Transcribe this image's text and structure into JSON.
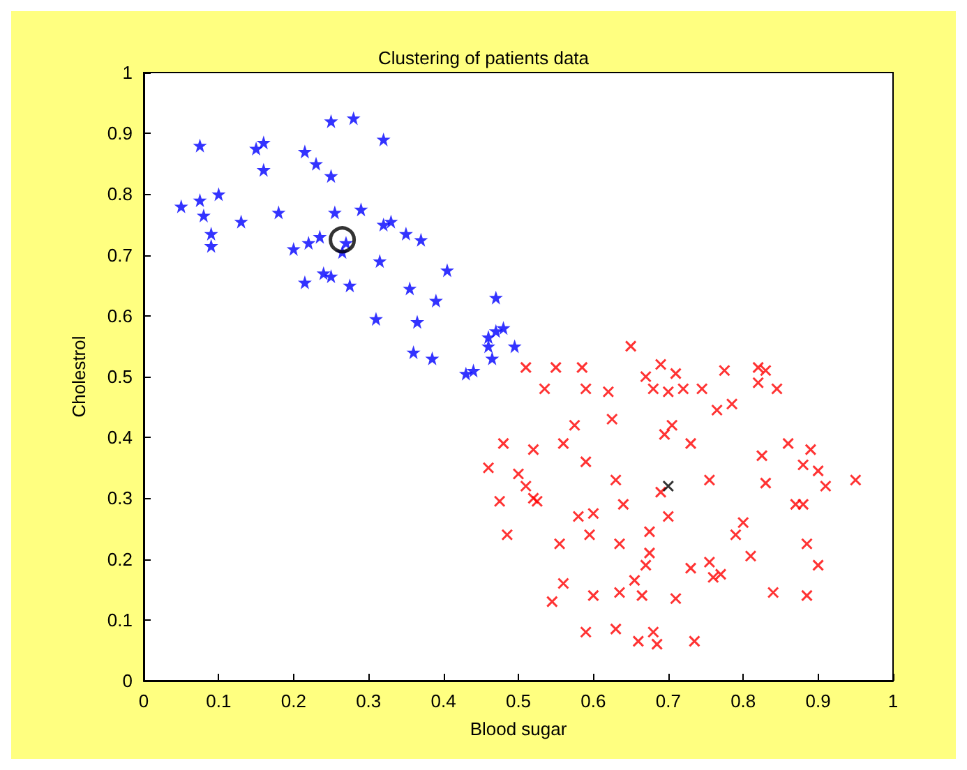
{
  "chart_data": {
    "type": "scatter",
    "title": "Clustering of patients data",
    "xlabel": "Blood sugar",
    "ylabel": "Cholestrol",
    "xlim": [
      0,
      1
    ],
    "ylim": [
      0,
      1
    ],
    "xticks": [
      0,
      0.1,
      0.2,
      0.3,
      0.4,
      0.5,
      0.6,
      0.7,
      0.8,
      0.9,
      1
    ],
    "yticks": [
      0,
      0.1,
      0.2,
      0.3,
      0.4,
      0.5,
      0.6,
      0.7,
      0.8,
      0.9,
      1
    ],
    "grid": false,
    "series": [
      {
        "color": "#0000ff",
        "marker": "star",
        "x": [
          0.05,
          0.075,
          0.075,
          0.08,
          0.09,
          0.09,
          0.1,
          0.13,
          0.15,
          0.16,
          0.16,
          0.18,
          0.2,
          0.215,
          0.215,
          0.22,
          0.23,
          0.235,
          0.24,
          0.25,
          0.25,
          0.25,
          0.255,
          0.265,
          0.27,
          0.275,
          0.28,
          0.29,
          0.31,
          0.315,
          0.32,
          0.32,
          0.33,
          0.35,
          0.355,
          0.36,
          0.365,
          0.37,
          0.385,
          0.39,
          0.405,
          0.43,
          0.44,
          0.46,
          0.46,
          0.465,
          0.47,
          0.47,
          0.48,
          0.495
        ],
        "values": [
          0.78,
          0.88,
          0.79,
          0.765,
          0.715,
          0.735,
          0.8,
          0.755,
          0.875,
          0.885,
          0.84,
          0.77,
          0.71,
          0.87,
          0.655,
          0.72,
          0.85,
          0.73,
          0.67,
          0.665,
          0.92,
          0.83,
          0.77,
          0.705,
          0.72,
          0.65,
          0.925,
          0.775,
          0.595,
          0.69,
          0.89,
          0.75,
          0.755,
          0.735,
          0.645,
          0.54,
          0.59,
          0.725,
          0.53,
          0.625,
          0.675,
          0.505,
          0.51,
          0.565,
          0.55,
          0.53,
          0.63,
          0.575,
          0.58,
          0.55
        ]
      },
      {
        "color": "#ff0000",
        "marker": "cross",
        "x": [
          0.46,
          0.475,
          0.48,
          0.485,
          0.5,
          0.51,
          0.51,
          0.52,
          0.52,
          0.525,
          0.535,
          0.545,
          0.55,
          0.555,
          0.56,
          0.56,
          0.575,
          0.58,
          0.585,
          0.59,
          0.59,
          0.59,
          0.595,
          0.6,
          0.6,
          0.62,
          0.625,
          0.63,
          0.63,
          0.635,
          0.635,
          0.64,
          0.65,
          0.655,
          0.66,
          0.665,
          0.67,
          0.67,
          0.675,
          0.675,
          0.68,
          0.68,
          0.685,
          0.69,
          0.69,
          0.695,
          0.7,
          0.7,
          0.705,
          0.71,
          0.71,
          0.72,
          0.73,
          0.73,
          0.735,
          0.745,
          0.755,
          0.755,
          0.76,
          0.765,
          0.77,
          0.775,
          0.785,
          0.79,
          0.8,
          0.81,
          0.82,
          0.82,
          0.825,
          0.83,
          0.83,
          0.84,
          0.845,
          0.86,
          0.87,
          0.88,
          0.88,
          0.885,
          0.885,
          0.89,
          0.9,
          0.9,
          0.91,
          0.95
        ],
        "values": [
          0.35,
          0.295,
          0.39,
          0.24,
          0.34,
          0.515,
          0.32,
          0.38,
          0.3,
          0.295,
          0.48,
          0.13,
          0.515,
          0.225,
          0.16,
          0.39,
          0.42,
          0.27,
          0.515,
          0.08,
          0.48,
          0.36,
          0.24,
          0.275,
          0.14,
          0.475,
          0.43,
          0.085,
          0.33,
          0.225,
          0.145,
          0.29,
          0.55,
          0.165,
          0.065,
          0.14,
          0.19,
          0.5,
          0.245,
          0.21,
          0.08,
          0.48,
          0.06,
          0.52,
          0.31,
          0.405,
          0.475,
          0.27,
          0.42,
          0.135,
          0.505,
          0.48,
          0.185,
          0.39,
          0.065,
          0.48,
          0.33,
          0.195,
          0.17,
          0.445,
          0.175,
          0.51,
          0.455,
          0.24,
          0.26,
          0.205,
          0.515,
          0.49,
          0.37,
          0.325,
          0.51,
          0.145,
          0.48,
          0.39,
          0.29,
          0.355,
          0.29,
          0.14,
          0.225,
          0.38,
          0.19,
          0.345,
          0.32,
          0.33
        ]
      },
      {
        "color": "#000000",
        "marker": "circle",
        "x": [
          0.265
        ],
        "values": [
          0.725
        ]
      },
      {
        "color": "#000000",
        "marker": "cross",
        "x": [
          0.7
        ],
        "values": [
          0.32
        ]
      }
    ]
  }
}
